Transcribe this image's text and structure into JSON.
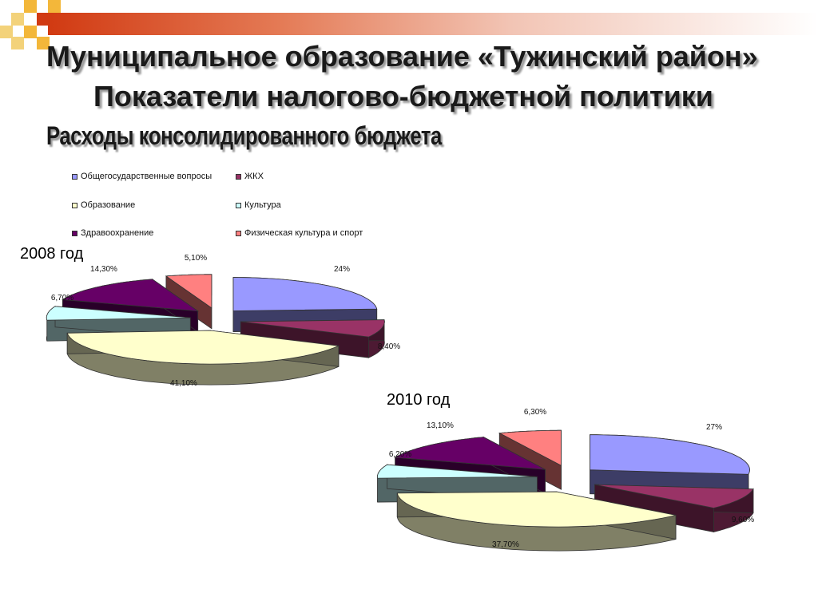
{
  "slide": {
    "title_line1": "Муниципальное образование «Тужинский район»",
    "title_line2": "Показатели налогово-бюджетной политики",
    "title_line3": "Расходы консолидированного бюджета"
  },
  "legend": [
    {
      "label": "Общегосударственные вопросы",
      "color": "#9999ff"
    },
    {
      "label": "ЖКХ",
      "color": "#993366"
    },
    {
      "label": "Образование",
      "color": "#ffffcc"
    },
    {
      "label": "Культура",
      "color": "#ccffff"
    },
    {
      "label": "Здравоохранение",
      "color": "#660066"
    },
    {
      "label": "Физическая культура и спорт",
      "color": "#ff8080"
    }
  ],
  "chart_data": [
    {
      "type": "pie",
      "title": "2008 год",
      "categories": [
        "Общегосударственные вопросы",
        "ЖКХ",
        "Образование",
        "Культура",
        "Здравоохранение",
        "Физическая культура и спорт"
      ],
      "values": [
        24,
        8.4,
        41.1,
        6.7,
        14.3,
        5.1
      ],
      "labels": [
        "24%",
        "8,40%",
        "41,10%",
        "6,70%",
        "14,30%",
        "5,10%"
      ],
      "colors": [
        "#9999ff",
        "#993366",
        "#ffffcc",
        "#ccffff",
        "#660066",
        "#ff8080"
      ]
    },
    {
      "type": "pie",
      "title": "2010 год",
      "categories": [
        "Общегосударственные вопросы",
        "ЖКХ",
        "Образование",
        "Культура",
        "Здравоохранение",
        "Физическая культура и спорт"
      ],
      "values": [
        27,
        9.6,
        37.7,
        6.2,
        13.1,
        6.3
      ],
      "labels": [
        "27%",
        "9,60%",
        "37,70%",
        "6,20%",
        "13,10%",
        "6,30%"
      ],
      "colors": [
        "#9999ff",
        "#993366",
        "#ffffcc",
        "#ccffff",
        "#660066",
        "#ff8080"
      ]
    }
  ]
}
